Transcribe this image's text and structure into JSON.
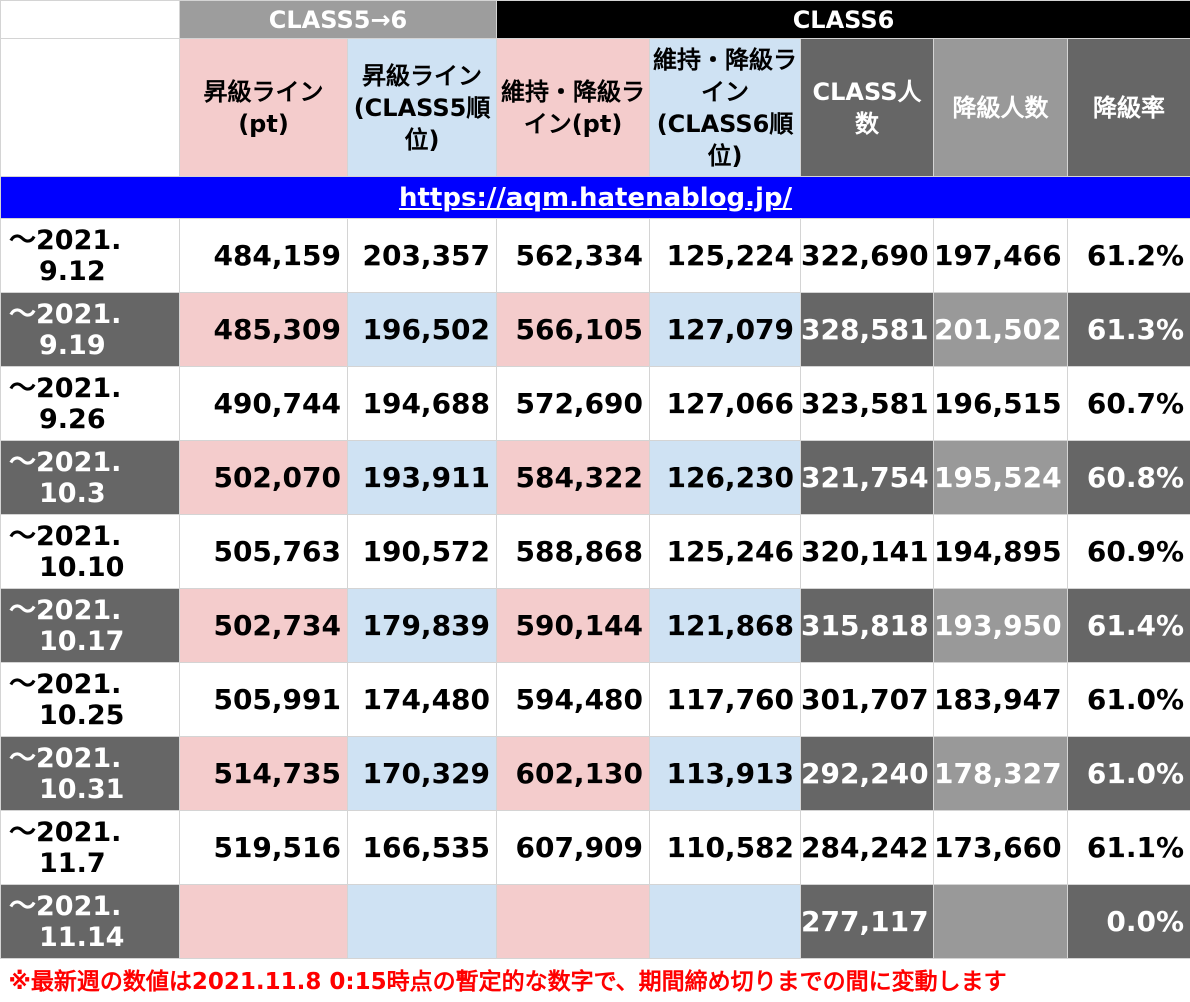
{
  "group_headers": {
    "class5to6": "CLASS5→6",
    "class6": "CLASS6"
  },
  "headers": {
    "promo_pt": "昇級ライン(pt)",
    "promo_rank": "昇級ライン(CLASS5順位)",
    "keep_pt": "維持・降級ライン(pt)",
    "keep_rank": "維持・降級ライン(CLASS6順位)",
    "class_count": "CLASS人数",
    "demote_count": "降級人数",
    "demote_rate": "降級率"
  },
  "url": "https://aqm.hatenablog.jp/",
  "rows": [
    {
      "date1": "〜2021.",
      "date2": "9.12",
      "promo_pt": "484,159",
      "promo_rank": "203,357",
      "keep_pt": "562,334",
      "keep_rank": "125,224",
      "class_count": "322,690",
      "demote_count": "197,466",
      "demote_rate": "61.2%"
    },
    {
      "date1": "〜2021.",
      "date2": "9.19",
      "promo_pt": "485,309",
      "promo_rank": "196,502",
      "keep_pt": "566,105",
      "keep_rank": "127,079",
      "class_count": "328,581",
      "demote_count": "201,502",
      "demote_rate": "61.3%"
    },
    {
      "date1": "〜2021.",
      "date2": "9.26",
      "promo_pt": "490,744",
      "promo_rank": "194,688",
      "keep_pt": "572,690",
      "keep_rank": "127,066",
      "class_count": "323,581",
      "demote_count": "196,515",
      "demote_rate": "60.7%"
    },
    {
      "date1": "〜2021.",
      "date2": "10.3",
      "promo_pt": "502,070",
      "promo_rank": "193,911",
      "keep_pt": "584,322",
      "keep_rank": "126,230",
      "class_count": "321,754",
      "demote_count": "195,524",
      "demote_rate": "60.8%"
    },
    {
      "date1": "〜2021.",
      "date2": "10.10",
      "promo_pt": "505,763",
      "promo_rank": "190,572",
      "keep_pt": "588,868",
      "keep_rank": "125,246",
      "class_count": "320,141",
      "demote_count": "194,895",
      "demote_rate": "60.9%"
    },
    {
      "date1": "〜2021.",
      "date2": "10.17",
      "promo_pt": "502,734",
      "promo_rank": "179,839",
      "keep_pt": "590,144",
      "keep_rank": "121,868",
      "class_count": "315,818",
      "demote_count": "193,950",
      "demote_rate": "61.4%"
    },
    {
      "date1": "〜2021.",
      "date2": "10.25",
      "promo_pt": "505,991",
      "promo_rank": "174,480",
      "keep_pt": "594,480",
      "keep_rank": "117,760",
      "class_count": "301,707",
      "demote_count": "183,947",
      "demote_rate": "61.0%"
    },
    {
      "date1": "〜2021.",
      "date2": "10.31",
      "promo_pt": "514,735",
      "promo_rank": "170,329",
      "keep_pt": "602,130",
      "keep_rank": "113,913",
      "class_count": "292,240",
      "demote_count": "178,327",
      "demote_rate": "61.0%"
    },
    {
      "date1": "〜2021.",
      "date2": "11.7",
      "promo_pt": "519,516",
      "promo_rank": "166,535",
      "keep_pt": "607,909",
      "keep_rank": "110,582",
      "class_count": "284,242",
      "demote_count": "173,660",
      "demote_rate": "61.1%"
    },
    {
      "date1": "〜2021.",
      "date2": "11.14",
      "promo_pt": "",
      "promo_rank": "",
      "keep_pt": "",
      "keep_rank": "",
      "class_count": "277,117",
      "demote_count": "",
      "demote_rate": "0.0%"
    }
  ],
  "note": "※最新週の数値は2021.11.8 0:15時点の暫定的な数字で、期間締め切りまでの間に変動します",
  "colors": {
    "pink": "#f4cccc",
    "blue": "#cfe2f3",
    "dark": "#666666",
    "mid": "#999999",
    "url_bg": "#0000ff",
    "note": "#ff0000"
  }
}
